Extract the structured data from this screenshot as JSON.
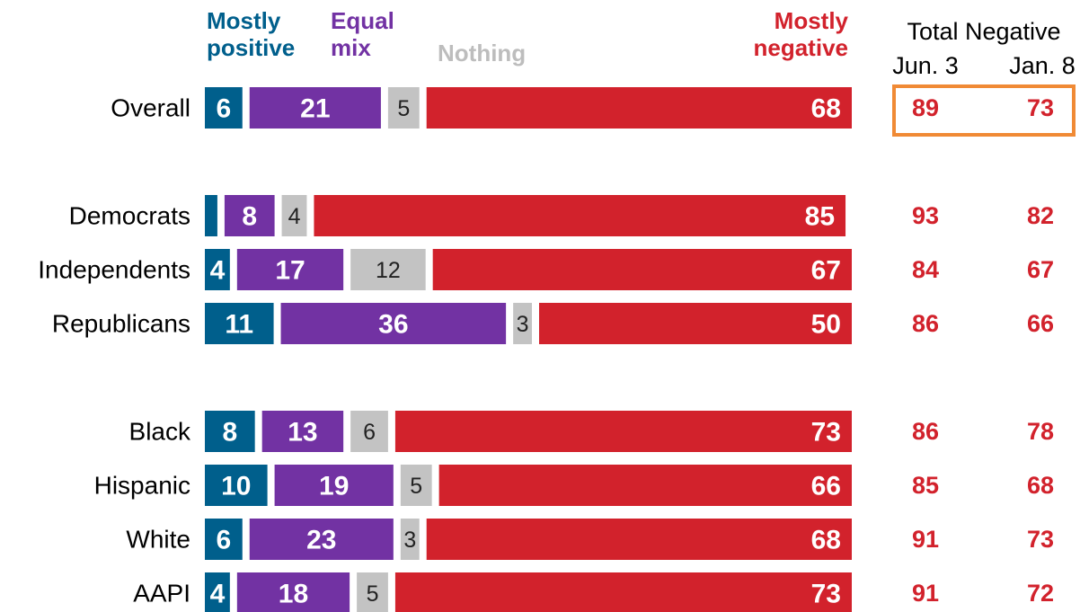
{
  "chart_data": {
    "type": "bar",
    "orientation": "horizontal",
    "categories": [
      "Overall",
      "Democrats",
      "Independents",
      "Republicans",
      "Black",
      "Hispanic",
      "White",
      "AAPI"
    ],
    "xlim": [
      0,
      100
    ],
    "series": [
      {
        "name": "Mostly positive",
        "color": "#005f8c",
        "values": [
          6,
          2,
          4,
          11,
          8,
          10,
          6,
          4
        ],
        "value_labels": [
          "6",
          null,
          "4",
          "11",
          "8",
          "10",
          "6",
          "4"
        ]
      },
      {
        "name": "Equal mix",
        "color": "#7232a3",
        "values": [
          21,
          8,
          17,
          36,
          13,
          19,
          23,
          18
        ]
      },
      {
        "name": "Nothing",
        "color": "#c3c3c3",
        "values": [
          5,
          4,
          12,
          3,
          6,
          5,
          3,
          5
        ]
      },
      {
        "name": "Mostly negative",
        "color": "#d2222c",
        "values": [
          68,
          85,
          67,
          50,
          73,
          66,
          68,
          73
        ]
      }
    ],
    "columns": {
      "title": "Total Negative",
      "color": "#d2222c",
      "series": [
        {
          "name": "Jun. 3",
          "values": [
            89,
            93,
            84,
            86,
            86,
            85,
            91,
            91
          ]
        },
        {
          "name": "Jan. 8",
          "values": [
            73,
            82,
            67,
            66,
            78,
            68,
            73,
            72
          ]
        }
      ]
    }
  }
}
